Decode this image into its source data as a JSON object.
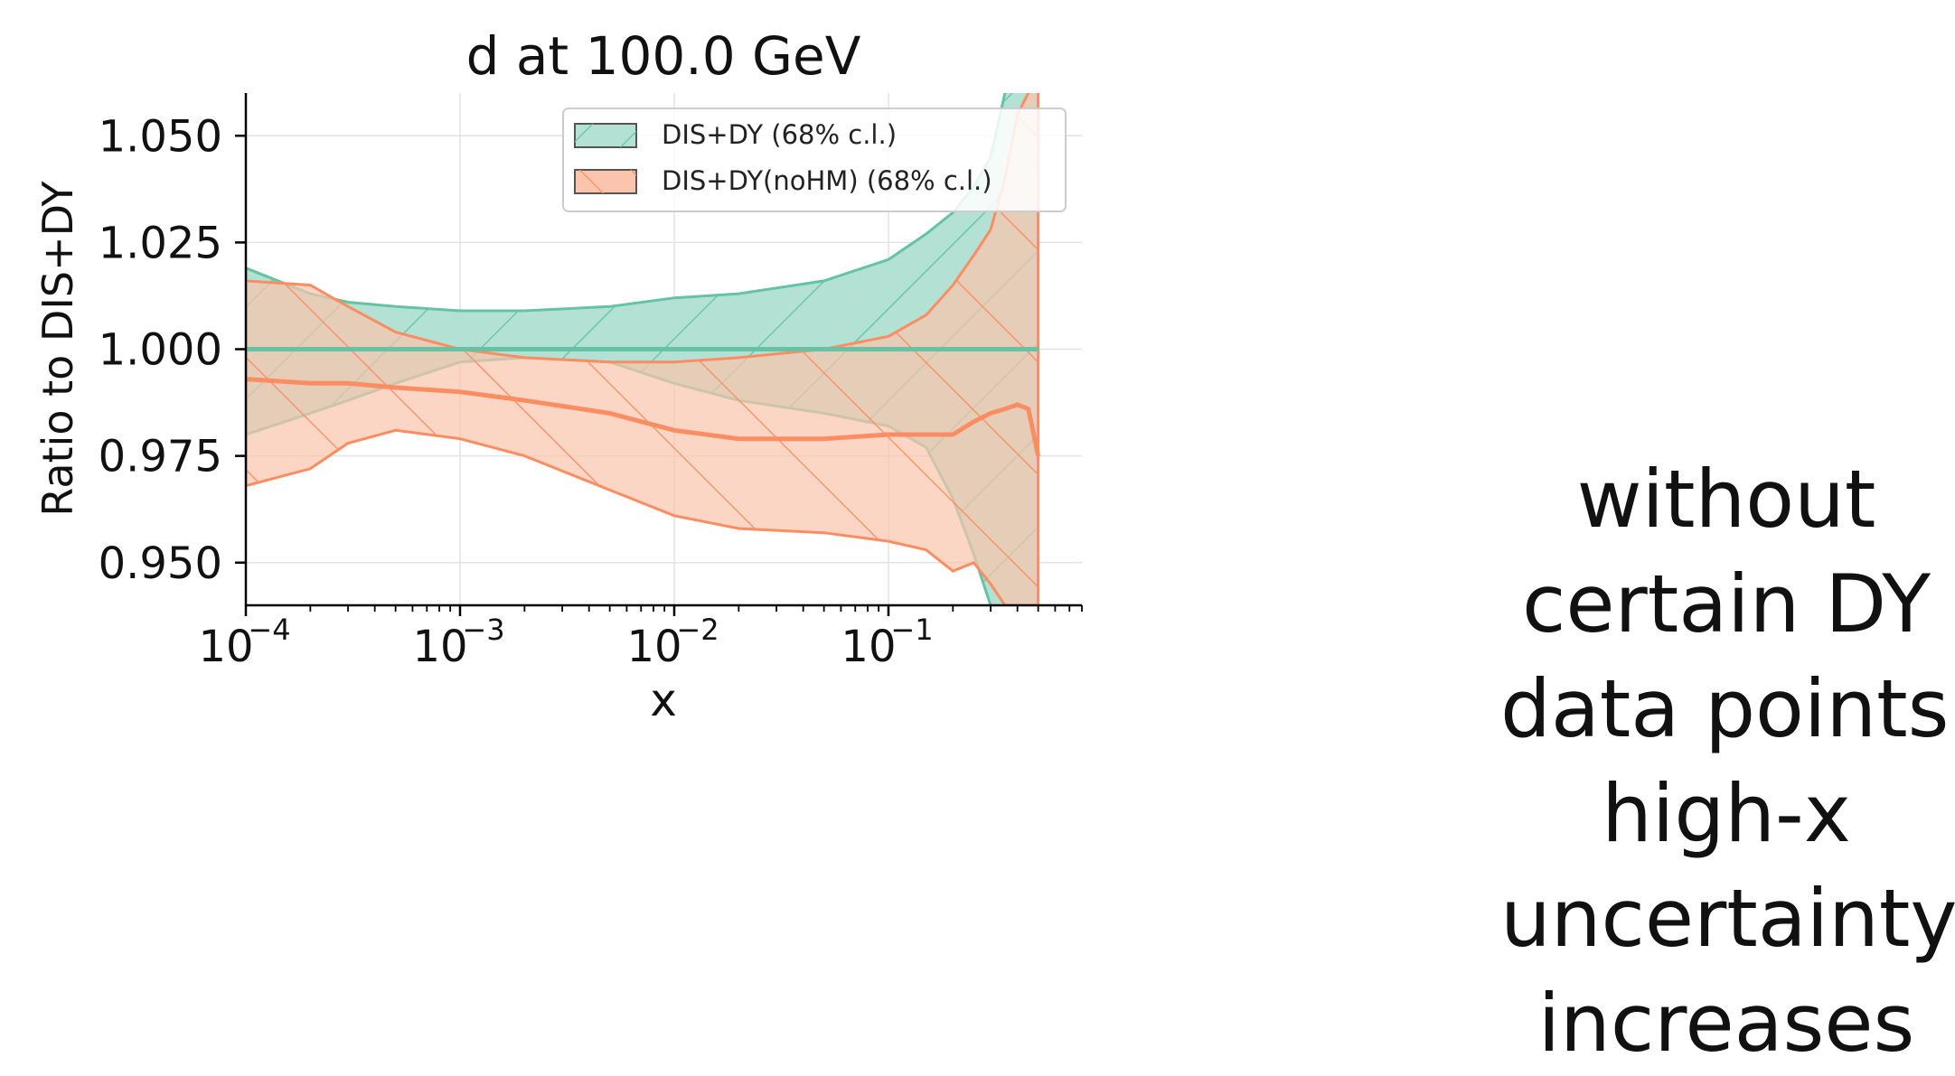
{
  "chart_data": {
    "type": "area",
    "title": "d at 100.0 GeV",
    "xlabel": "x",
    "ylabel": "Ratio to DIS+DY",
    "x_scale": "log",
    "xlim": [
      0.0001,
      0.8
    ],
    "ylim": [
      0.94,
      1.06
    ],
    "grid": true,
    "legend_position": "top-right",
    "y_ticks": [
      0.95,
      0.975,
      1.0,
      1.025,
      1.05
    ],
    "y_tick_labels": [
      "0.950",
      "0.975",
      "1.000",
      "1.025",
      "1.050"
    ],
    "x_ticks": [
      0.0001,
      0.001,
      0.01,
      0.1
    ],
    "x_tick_labels": [
      {
        "base": "10",
        "exp": "−4"
      },
      {
        "base": "10",
        "exp": "−3"
      },
      {
        "base": "10",
        "exp": "−2"
      },
      {
        "base": "10",
        "exp": "−1"
      }
    ],
    "series": [
      {
        "name": "DIS+DY (68% c.l.)",
        "color": "#66c2a5",
        "fill": "#b3e2d4",
        "hatch": "/",
        "x": [
          0.0001,
          0.0002,
          0.0003,
          0.0005,
          0.001,
          0.002,
          0.005,
          0.01,
          0.02,
          0.05,
          0.1,
          0.15,
          0.2,
          0.25,
          0.3,
          0.35,
          0.5
        ],
        "central": [
          1.0,
          1.0,
          1.0,
          1.0,
          1.0,
          1.0,
          1.0,
          1.0,
          1.0,
          1.0,
          1.0,
          1.0,
          1.0,
          1.0,
          1.0,
          1.0,
          1.0
        ],
        "upper": [
          1.019,
          1.013,
          1.011,
          1.01,
          1.009,
          1.009,
          1.01,
          1.012,
          1.013,
          1.016,
          1.021,
          1.027,
          1.032,
          1.038,
          1.045,
          1.06,
          1.065
        ],
        "lower": [
          0.98,
          0.985,
          0.988,
          0.992,
          0.997,
          0.998,
          0.997,
          0.992,
          0.988,
          0.985,
          0.982,
          0.977,
          0.965,
          0.952,
          0.94,
          0.935,
          0.935
        ]
      },
      {
        "name": "DIS+DY(noHM) (68% c.l.)",
        "color": "#fc8d62",
        "fill": "#fbc4ad",
        "hatch": "\\",
        "x": [
          0.0001,
          0.0002,
          0.0003,
          0.0005,
          0.001,
          0.002,
          0.005,
          0.01,
          0.02,
          0.05,
          0.1,
          0.15,
          0.2,
          0.25,
          0.3,
          0.35,
          0.4,
          0.45,
          0.5
        ],
        "central": [
          0.993,
          0.992,
          0.992,
          0.991,
          0.99,
          0.988,
          0.985,
          0.981,
          0.979,
          0.979,
          0.98,
          0.98,
          0.98,
          0.983,
          0.985,
          0.986,
          0.987,
          0.986,
          0.975
        ],
        "upper": [
          1.016,
          1.015,
          1.01,
          1.004,
          1.0,
          0.998,
          0.997,
          0.997,
          0.998,
          1.0,
          1.003,
          1.008,
          1.015,
          1.022,
          1.028,
          1.04,
          1.055,
          1.06,
          1.065
        ],
        "lower": [
          0.968,
          0.972,
          0.978,
          0.981,
          0.979,
          0.975,
          0.967,
          0.961,
          0.958,
          0.957,
          0.955,
          0.953,
          0.948,
          0.95,
          0.945,
          0.94,
          0.94,
          0.94,
          0.94
        ]
      }
    ]
  },
  "annotation": {
    "lines": [
      "without",
      "certain DY",
      "data points,",
      "high-x",
      "uncertainty",
      "increases"
    ]
  }
}
